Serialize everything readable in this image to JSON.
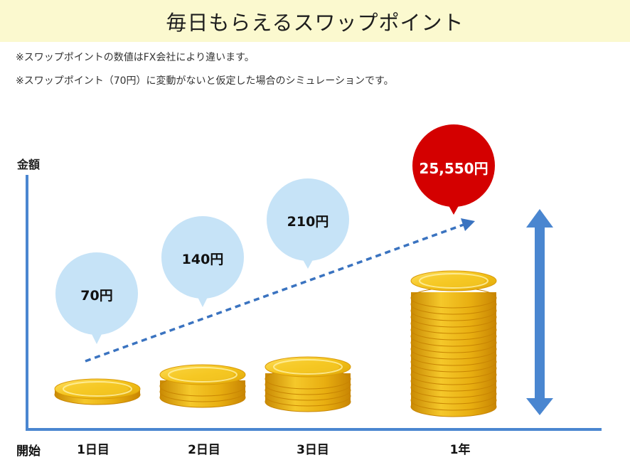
{
  "title": "毎日もらえるスワップポイント",
  "notes": [
    "※スワップポイントの数値はFX会社により違います。",
    "※スワップポイント（70円）に変動がないと仮定した場合のシミュレーションです。"
  ],
  "y_axis_label": "金額",
  "x_axis_start_label": "開始",
  "stages": [
    {
      "label": "1日目",
      "amount": "70円",
      "coin_stack": 1
    },
    {
      "label": "2日目",
      "amount": "140円",
      "coin_stack": 3
    },
    {
      "label": "3日目",
      "amount": "210円",
      "coin_stack": 5
    },
    {
      "label": "1年",
      "amount": "25,550円",
      "coin_stack": 18
    }
  ],
  "colors": {
    "title_bg": "#fbf9cf",
    "axis": "#4a86d0",
    "bubble_light": "#c6e3f7",
    "bubble_highlight": "#d40000",
    "coin_gold": "#f3c21a",
    "coin_edge": "#d99a08"
  },
  "icons": [
    "dashed-trend-arrow-icon",
    "double-headed-arrow-icon",
    "coin-stack-icon"
  ]
}
